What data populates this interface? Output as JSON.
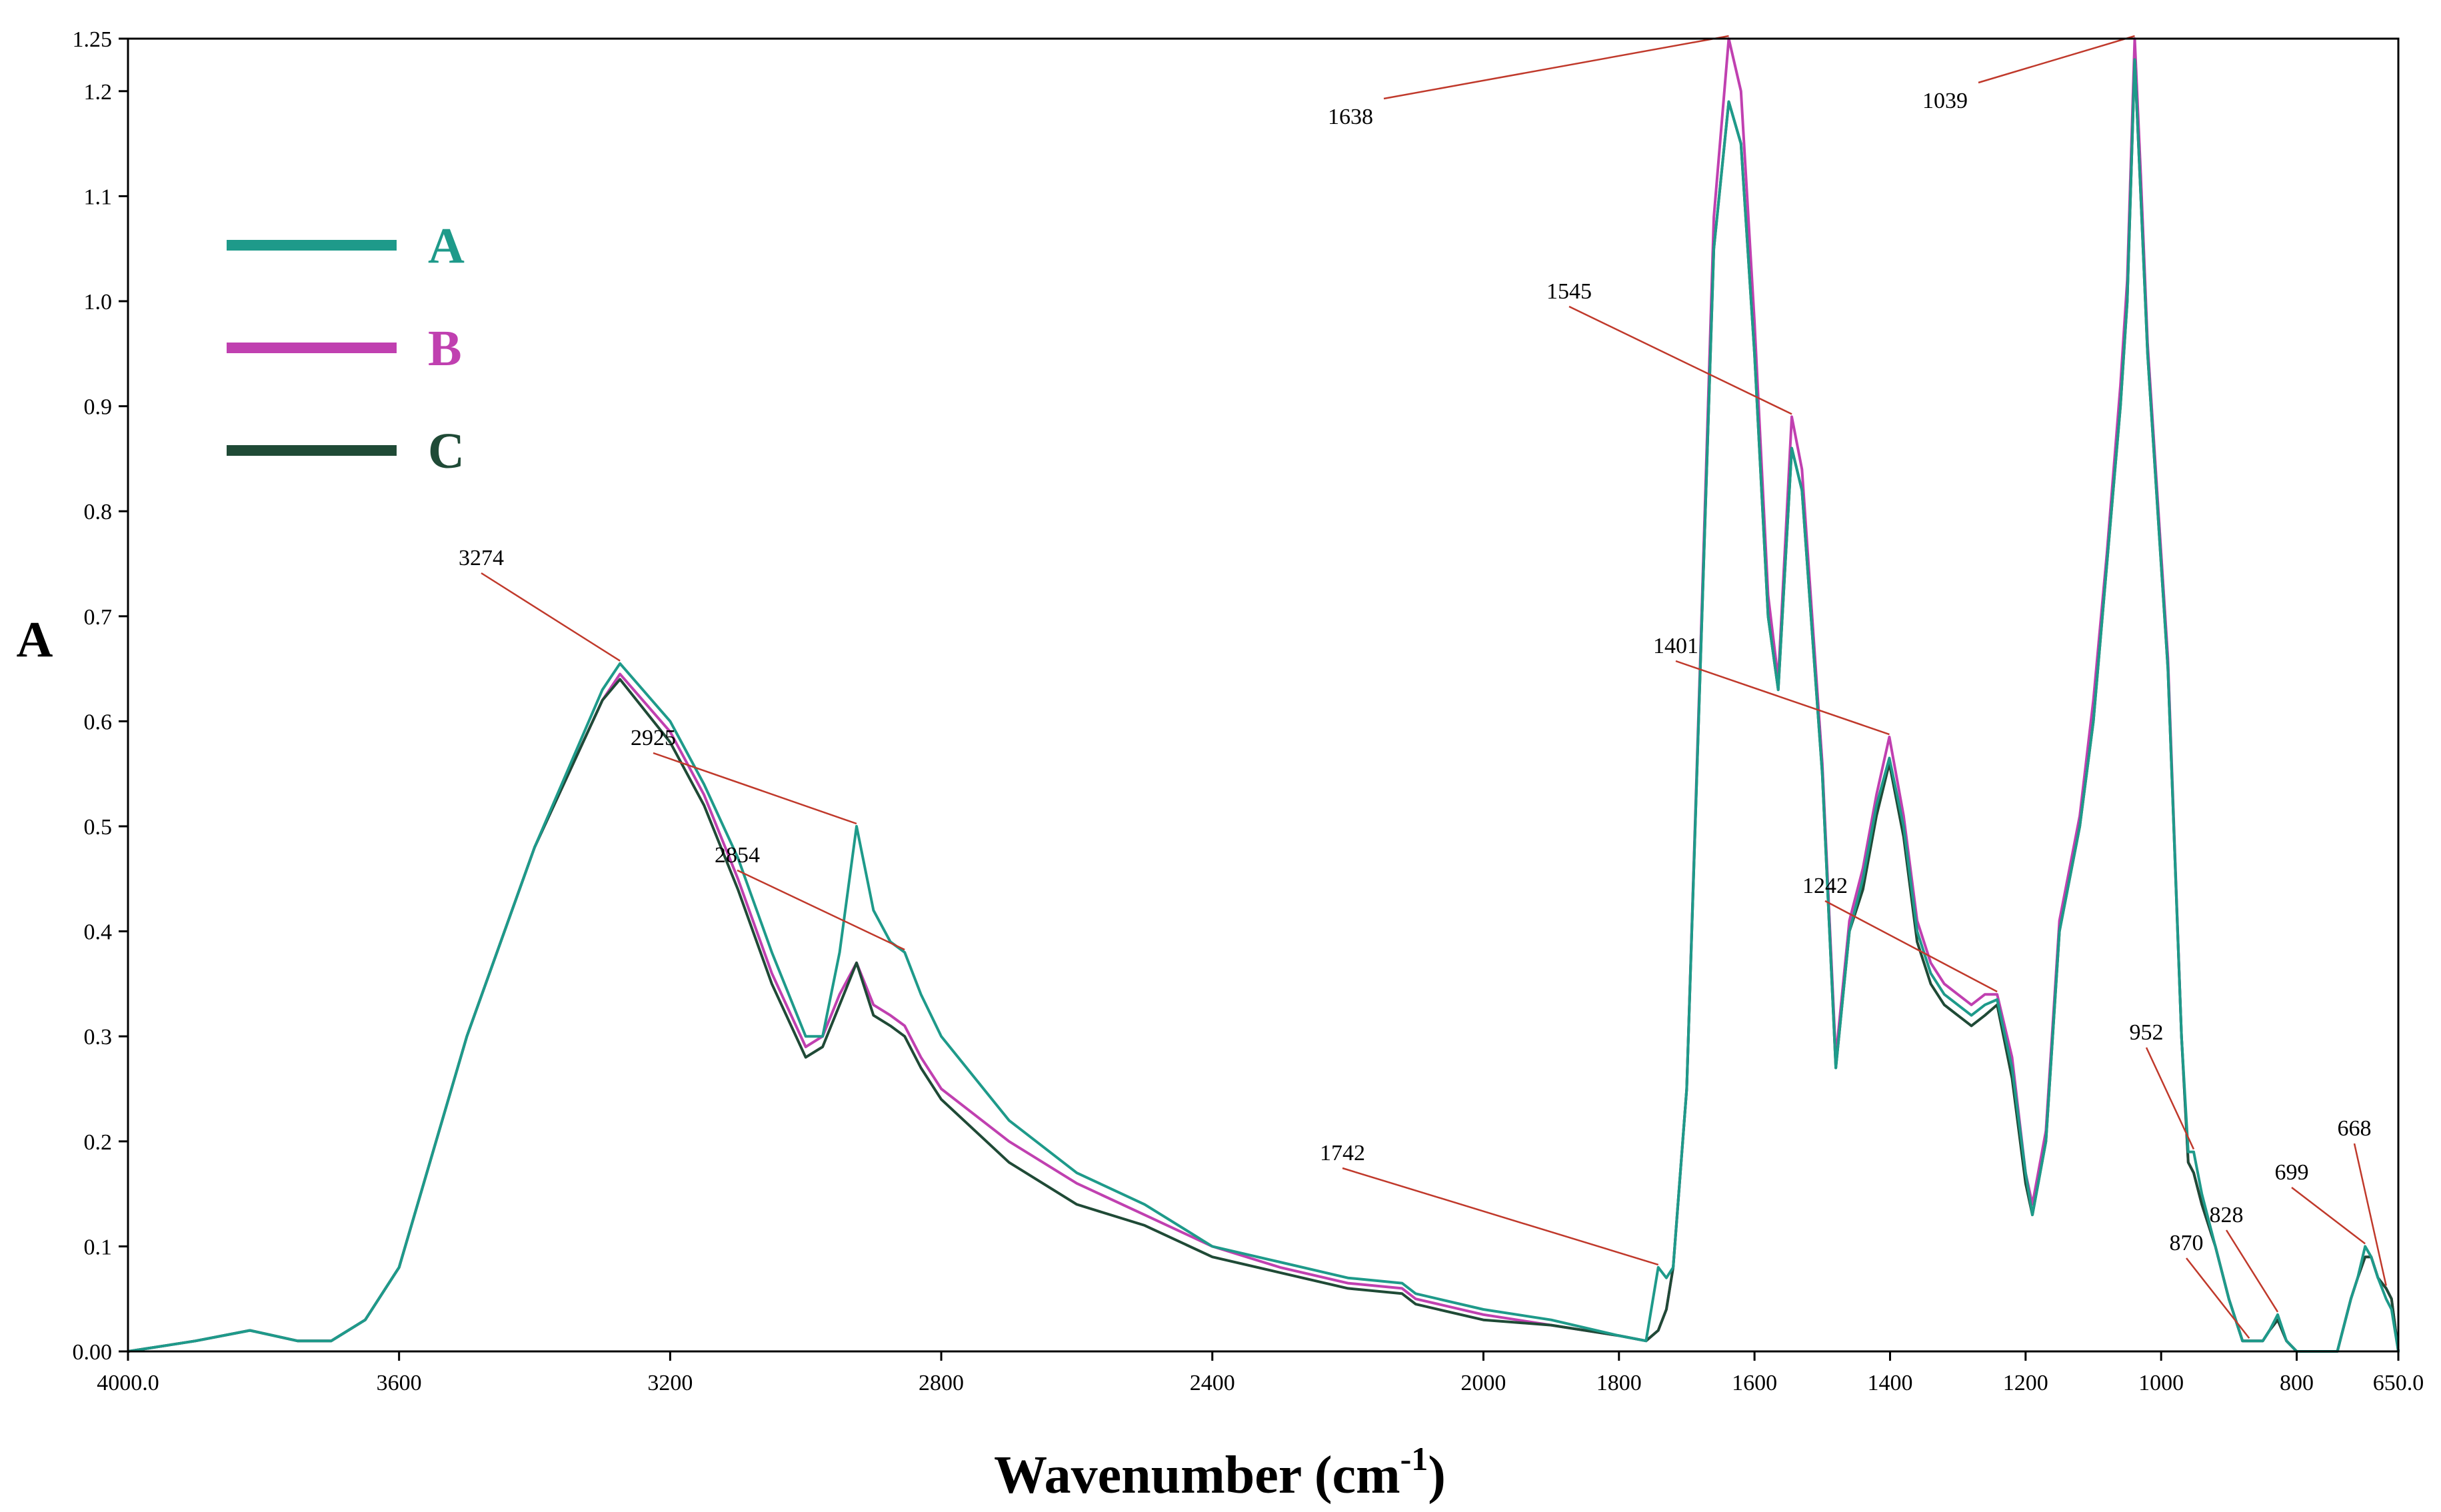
{
  "chart_data": {
    "type": "line",
    "title": "",
    "xlabel": "Wavenumber (cm",
    "xlabel_sup": "-1",
    "xlabel_close": ")",
    "ylabel": "A",
    "xlim": [
      4000,
      650
    ],
    "ylim": [
      0,
      1.25
    ],
    "x_reversed": true,
    "grid": false,
    "x_ticks": [
      {
        "value": 4000,
        "label": "4000.0"
      },
      {
        "value": 3600,
        "label": "3600"
      },
      {
        "value": 3200,
        "label": "3200"
      },
      {
        "value": 2800,
        "label": "2800"
      },
      {
        "value": 2400,
        "label": "2400"
      },
      {
        "value": 2000,
        "label": "2000"
      },
      {
        "value": 1800,
        "label": "1800"
      },
      {
        "value": 1600,
        "label": "1600"
      },
      {
        "value": 1400,
        "label": "1400"
      },
      {
        "value": 1200,
        "label": "1200"
      },
      {
        "value": 1000,
        "label": "1000"
      },
      {
        "value": 800,
        "label": "800"
      },
      {
        "value": 650,
        "label": "650.0"
      }
    ],
    "y_ticks": [
      {
        "value": 0.0,
        "label": "0.00"
      },
      {
        "value": 0.1,
        "label": "0.1"
      },
      {
        "value": 0.2,
        "label": "0.2"
      },
      {
        "value": 0.3,
        "label": "0.3"
      },
      {
        "value": 0.4,
        "label": "0.4"
      },
      {
        "value": 0.5,
        "label": "0.5"
      },
      {
        "value": 0.6,
        "label": "0.6"
      },
      {
        "value": 0.7,
        "label": "0.7"
      },
      {
        "value": 0.8,
        "label": "0.8"
      },
      {
        "value": 0.9,
        "label": "0.9"
      },
      {
        "value": 1.0,
        "label": "1.0"
      },
      {
        "value": 1.1,
        "label": "1.1"
      },
      {
        "value": 1.2,
        "label": "1.2"
      },
      {
        "value": 1.25,
        "label": "1.25"
      }
    ],
    "legend": {
      "placement": "top-left",
      "entries": [
        {
          "name": "A",
          "color": "#1e9a8a"
        },
        {
          "name": "B",
          "color": "#c040b0"
        },
        {
          "name": "C",
          "color": "#1f4a36"
        }
      ]
    },
    "series": [
      {
        "name": "A",
        "color": "#1e9a8a",
        "x": [
          4000,
          3900,
          3820,
          3750,
          3700,
          3650,
          3600,
          3500,
          3400,
          3300,
          3274,
          3200,
          3150,
          3100,
          3050,
          3000,
          2975,
          2950,
          2925,
          2900,
          2875,
          2854,
          2830,
          2800,
          2700,
          2600,
          2500,
          2400,
          2300,
          2200,
          2120,
          2100,
          2000,
          1900,
          1800,
          1760,
          1742,
          1730,
          1720,
          1700,
          1680,
          1660,
          1638,
          1620,
          1600,
          1580,
          1565,
          1545,
          1530,
          1500,
          1480,
          1460,
          1440,
          1420,
          1401,
          1380,
          1360,
          1340,
          1320,
          1300,
          1280,
          1260,
          1242,
          1220,
          1200,
          1190,
          1170,
          1150,
          1120,
          1100,
          1080,
          1060,
          1050,
          1039,
          1030,
          1020,
          1000,
          990,
          970,
          960,
          952,
          940,
          920,
          900,
          880,
          870,
          860,
          850,
          840,
          828,
          815,
          800,
          760,
          740,
          720,
          710,
          699,
          690,
          680,
          668,
          660,
          650
        ],
        "y": [
          0.0,
          0.01,
          0.02,
          0.01,
          0.01,
          0.03,
          0.08,
          0.3,
          0.48,
          0.63,
          0.655,
          0.6,
          0.54,
          0.47,
          0.38,
          0.3,
          0.3,
          0.38,
          0.5,
          0.42,
          0.39,
          0.38,
          0.34,
          0.3,
          0.22,
          0.17,
          0.14,
          0.1,
          0.085,
          0.07,
          0.065,
          0.055,
          0.04,
          0.03,
          0.015,
          0.01,
          0.08,
          0.07,
          0.08,
          0.25,
          0.65,
          1.05,
          1.19,
          1.15,
          0.95,
          0.7,
          0.63,
          0.86,
          0.82,
          0.55,
          0.27,
          0.4,
          0.45,
          0.52,
          0.565,
          0.5,
          0.4,
          0.36,
          0.34,
          0.33,
          0.32,
          0.33,
          0.335,
          0.27,
          0.17,
          0.13,
          0.2,
          0.4,
          0.5,
          0.6,
          0.75,
          0.9,
          1.0,
          1.23,
          1.1,
          0.95,
          0.75,
          0.65,
          0.3,
          0.19,
          0.19,
          0.15,
          0.1,
          0.05,
          0.01,
          0.01,
          0.01,
          0.01,
          0.02,
          0.035,
          0.01,
          0.0,
          0.0,
          0.0,
          0.05,
          0.07,
          0.1,
          0.09,
          0.07,
          0.05,
          0.04,
          0.0
        ]
      },
      {
        "name": "B",
        "color": "#c040b0",
        "x": [
          4000,
          3900,
          3820,
          3750,
          3700,
          3650,
          3600,
          3500,
          3400,
          3300,
          3274,
          3200,
          3150,
          3100,
          3050,
          3000,
          2975,
          2950,
          2925,
          2900,
          2875,
          2854,
          2830,
          2800,
          2700,
          2600,
          2500,
          2400,
          2300,
          2200,
          2120,
          2100,
          2000,
          1900,
          1800,
          1760,
          1742,
          1730,
          1720,
          1700,
          1680,
          1660,
          1638,
          1620,
          1600,
          1580,
          1565,
          1545,
          1530,
          1500,
          1480,
          1460,
          1440,
          1420,
          1401,
          1380,
          1360,
          1340,
          1320,
          1300,
          1280,
          1260,
          1242,
          1220,
          1200,
          1190,
          1170,
          1150,
          1120,
          1100,
          1080,
          1060,
          1050,
          1039,
          1030,
          1020,
          1000,
          990,
          970,
          960,
          952,
          940,
          920,
          900,
          880,
          870,
          860,
          850,
          840,
          828,
          815,
          800,
          760,
          740,
          720,
          710,
          699,
          690,
          680,
          668,
          660,
          650
        ],
        "y": [
          0.0,
          0.01,
          0.02,
          0.01,
          0.01,
          0.03,
          0.08,
          0.3,
          0.48,
          0.62,
          0.645,
          0.59,
          0.53,
          0.45,
          0.36,
          0.29,
          0.3,
          0.34,
          0.37,
          0.33,
          0.32,
          0.31,
          0.28,
          0.25,
          0.2,
          0.16,
          0.13,
          0.1,
          0.08,
          0.065,
          0.06,
          0.05,
          0.035,
          0.025,
          0.015,
          0.01,
          0.02,
          0.04,
          0.08,
          0.25,
          0.66,
          1.08,
          1.25,
          1.2,
          0.98,
          0.72,
          0.64,
          0.89,
          0.84,
          0.56,
          0.28,
          0.41,
          0.46,
          0.53,
          0.585,
          0.51,
          0.41,
          0.37,
          0.35,
          0.34,
          0.33,
          0.34,
          0.34,
          0.28,
          0.17,
          0.14,
          0.21,
          0.41,
          0.51,
          0.62,
          0.76,
          0.92,
          1.02,
          1.25,
          1.12,
          0.96,
          0.76,
          0.66,
          0.3,
          0.18,
          0.17,
          0.14,
          0.1,
          0.05,
          0.01,
          0.01,
          0.01,
          0.01,
          0.02,
          0.03,
          0.01,
          0.0,
          0.0,
          0.0,
          0.05,
          0.07,
          0.09,
          0.09,
          0.07,
          0.06,
          0.05,
          0.0
        ]
      },
      {
        "name": "C",
        "color": "#1f4a36",
        "x": [
          4000,
          3900,
          3820,
          3750,
          3700,
          3650,
          3600,
          3500,
          3400,
          3300,
          3274,
          3200,
          3150,
          3100,
          3050,
          3000,
          2975,
          2950,
          2925,
          2900,
          2875,
          2854,
          2830,
          2800,
          2700,
          2600,
          2500,
          2400,
          2300,
          2200,
          2120,
          2100,
          2000,
          1900,
          1800,
          1760,
          1742,
          1730,
          1720,
          1700,
          1680,
          1660,
          1638,
          1620,
          1600,
          1580,
          1565,
          1545,
          1530,
          1500,
          1480,
          1460,
          1440,
          1420,
          1401,
          1380,
          1360,
          1340,
          1320,
          1300,
          1280,
          1260,
          1242,
          1220,
          1200,
          1190,
          1170,
          1150,
          1120,
          1100,
          1080,
          1060,
          1050,
          1039,
          1030,
          1020,
          1000,
          990,
          970,
          960,
          952,
          940,
          920,
          900,
          880,
          870,
          860,
          850,
          840,
          828,
          815,
          800,
          760,
          740,
          720,
          710,
          699,
          690,
          680,
          668,
          660,
          650
        ],
        "y": [
          0.0,
          0.01,
          0.02,
          0.01,
          0.01,
          0.03,
          0.08,
          0.3,
          0.48,
          0.62,
          0.64,
          0.58,
          0.52,
          0.44,
          0.35,
          0.28,
          0.29,
          0.33,
          0.37,
          0.32,
          0.31,
          0.3,
          0.27,
          0.24,
          0.18,
          0.14,
          0.12,
          0.09,
          0.075,
          0.06,
          0.055,
          0.045,
          0.03,
          0.025,
          0.015,
          0.01,
          0.02,
          0.04,
          0.08,
          0.25,
          0.65,
          1.05,
          1.19,
          1.15,
          0.95,
          0.7,
          0.63,
          0.86,
          0.82,
          0.55,
          0.27,
          0.4,
          0.44,
          0.51,
          0.56,
          0.49,
          0.39,
          0.35,
          0.33,
          0.32,
          0.31,
          0.32,
          0.33,
          0.26,
          0.16,
          0.13,
          0.2,
          0.4,
          0.5,
          0.6,
          0.75,
          0.9,
          1.0,
          1.23,
          1.1,
          0.95,
          0.75,
          0.65,
          0.3,
          0.18,
          0.17,
          0.14,
          0.1,
          0.05,
          0.01,
          0.01,
          0.01,
          0.01,
          0.02,
          0.03,
          0.01,
          0.0,
          0.0,
          0.0,
          0.05,
          0.07,
          0.09,
          0.09,
          0.07,
          0.06,
          0.05,
          0.0
        ]
      }
    ],
    "annotations": [
      {
        "label": "3274",
        "x": 3274,
        "y": 0.655
      },
      {
        "label": "2925",
        "x": 2925,
        "y": 0.5
      },
      {
        "label": "2854",
        "x": 2854,
        "y": 0.38
      },
      {
        "label": "1742",
        "x": 1742,
        "y": 0.08
      },
      {
        "label": "1638",
        "x": 1638,
        "y": 1.25
      },
      {
        "label": "1545",
        "x": 1545,
        "y": 0.89
      },
      {
        "label": "1401",
        "x": 1401,
        "y": 0.585
      },
      {
        "label": "1242",
        "x": 1242,
        "y": 0.34
      },
      {
        "label": "1039",
        "x": 1039,
        "y": 1.25
      },
      {
        "label": "952",
        "x": 952,
        "y": 0.19
      },
      {
        "label": "870",
        "x": 870,
        "y": 0.01
      },
      {
        "label": "828",
        "x": 828,
        "y": 0.035
      },
      {
        "label": "699",
        "x": 699,
        "y": 0.1
      },
      {
        "label": "668",
        "x": 668,
        "y": 0.06
      }
    ]
  }
}
